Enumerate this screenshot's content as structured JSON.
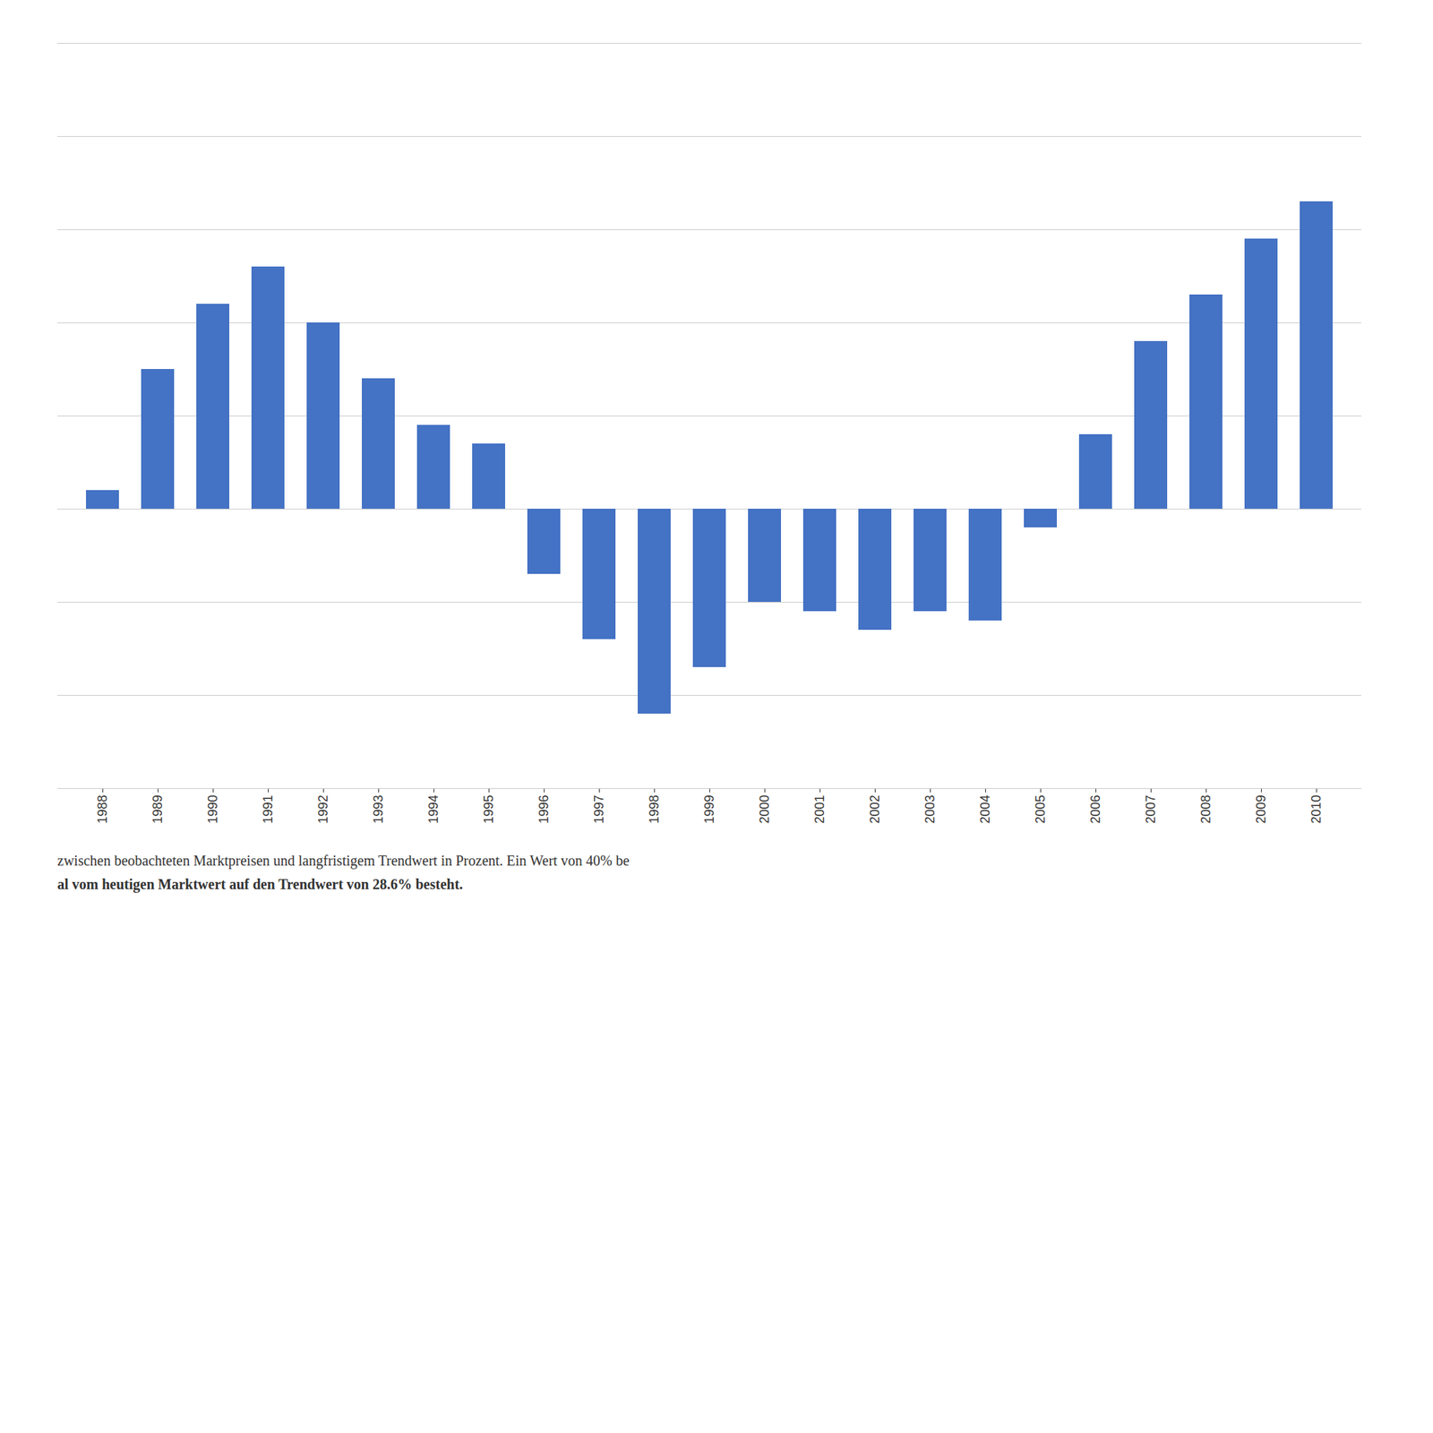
{
  "chart_data": {
    "type": "bar",
    "categories": [
      "1988",
      "1989",
      "1990",
      "1991",
      "1992",
      "1993",
      "1994",
      "1995",
      "1996",
      "1997",
      "1998",
      "1999",
      "2000",
      "2001",
      "2002",
      "2003",
      "2004",
      "2005",
      "2006",
      "2007",
      "2008",
      "2009",
      "2010"
    ],
    "values": [
      2,
      15,
      22,
      26,
      20,
      14,
      9,
      7,
      -7,
      -14,
      -22,
      -17,
      -10,
      -11,
      -13,
      -11,
      -12,
      -2,
      8,
      18,
      23,
      29,
      33
    ],
    "color": "#4472C4",
    "ylim": [
      -30,
      50
    ],
    "yticks": [
      -30,
      -20,
      -10,
      0,
      10,
      20,
      30,
      40,
      50
    ],
    "grid": true,
    "tick_labels": "x",
    "annotations": [
      "zwischen beobachteten Marktpreisen und langfristigem Trendwert in Prozent. Ein Wert von 40% be",
      "al vom heutigen Marktwert auf den Trendwert von 28.6% besteht."
    ]
  }
}
